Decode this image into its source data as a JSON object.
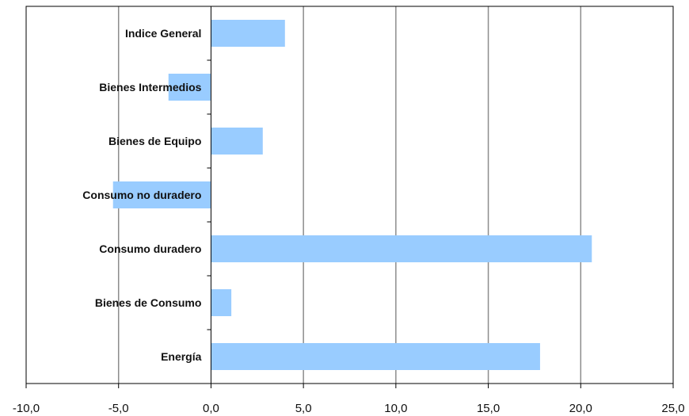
{
  "chart_data": {
    "type": "bar",
    "orientation": "horizontal",
    "categories": [
      "Indice General",
      "Bienes Intermedios",
      "Bienes de Equipo",
      "Consumo no duradero",
      "Consumo duradero",
      "Bienes de Consumo",
      "Energía"
    ],
    "values": [
      4.0,
      -2.3,
      2.8,
      -5.3,
      20.6,
      1.1,
      17.8
    ],
    "xlim": [
      -10,
      25
    ],
    "xticks": [
      -10,
      -5,
      0,
      5,
      10,
      15,
      20,
      25
    ],
    "tick_labels": [
      "-10,0",
      "-5,0",
      "0,0",
      "5,0",
      "10,0",
      "15,0",
      "20,0",
      "25,0"
    ],
    "grid": "vertical",
    "legend": "none",
    "bar_color": "#99ccff",
    "title": "",
    "xlabel": "",
    "ylabel": ""
  }
}
